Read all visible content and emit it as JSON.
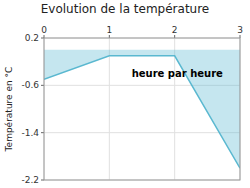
{
  "chart_data": {
    "type": "area",
    "title": "Evolution de la température",
    "xlabel": "heure par heure",
    "ylabel": "Température en °C",
    "x": [
      0,
      1,
      2,
      3
    ],
    "series": [
      {
        "values": [
          -0.5,
          -0.1,
          -0.1,
          -2.0
        ],
        "color": "#5ab8d0",
        "baseline": 0
      }
    ],
    "xlim": [
      0,
      3
    ],
    "ylim": [
      -2.2,
      0.2
    ],
    "xticks": [
      0,
      1,
      2,
      3
    ],
    "yticks": [
      0.2,
      -0.6,
      -1.4,
      -2.2
    ],
    "grid": true
  }
}
